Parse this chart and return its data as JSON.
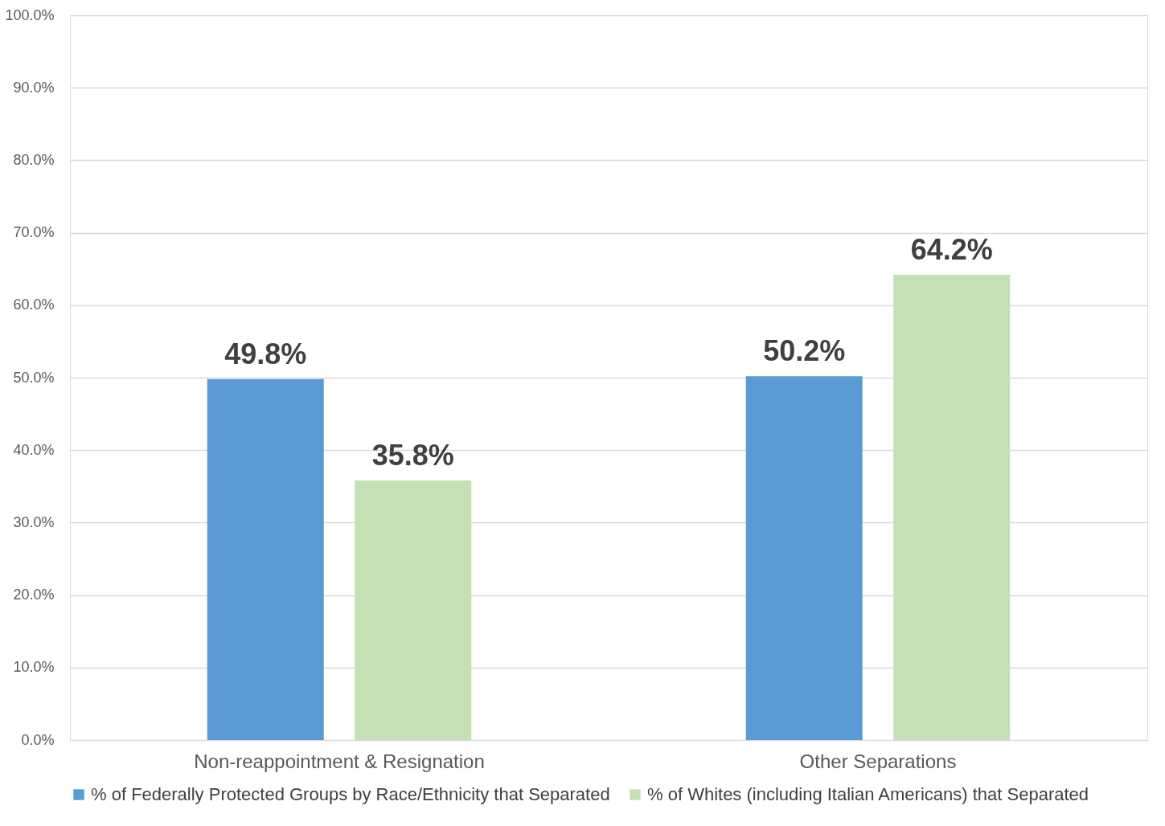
{
  "chart_data": {
    "type": "bar",
    "categories": [
      "Non-reappointment & Resignation",
      "Other Separations"
    ],
    "series": [
      {
        "name": "% of Federally Protected Groups by Race/Ethnicity that Separated",
        "color": "#5b9bd5",
        "values": [
          49.8,
          50.2
        ],
        "value_labels": [
          "49.8%",
          "50.2%"
        ]
      },
      {
        "name": "% of Whites (including Italian Americans)  that  Separated",
        "color": "#c5e0b4",
        "values": [
          35.8,
          64.2
        ],
        "value_labels": [
          "35.8%",
          "64.2%"
        ]
      }
    ],
    "ylim": [
      0,
      100
    ],
    "yticks": [
      {
        "value": 0,
        "label": "0.0%"
      },
      {
        "value": 10,
        "label": "10.0%"
      },
      {
        "value": 20,
        "label": "20.0%"
      },
      {
        "value": 30,
        "label": "30.0%"
      },
      {
        "value": 40,
        "label": "40.0%"
      },
      {
        "value": 50,
        "label": "50.0%"
      },
      {
        "value": 60,
        "label": "60.0%"
      },
      {
        "value": 70,
        "label": "70.0%"
      },
      {
        "value": 80,
        "label": "80.0%"
      },
      {
        "value": 90,
        "label": "90.0%"
      },
      {
        "value": 100,
        "label": "100.0%"
      }
    ],
    "grid": "y",
    "legend": "bottom"
  }
}
